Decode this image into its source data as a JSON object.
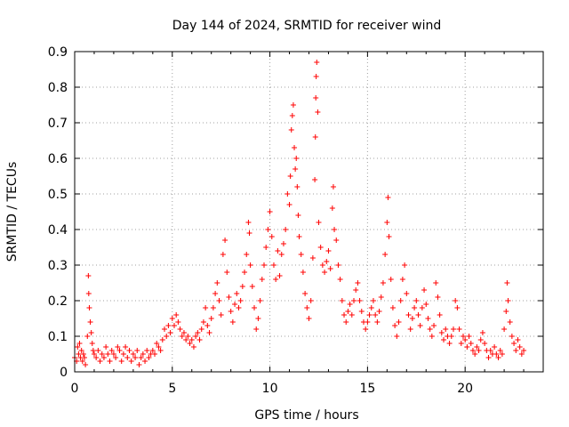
{
  "chart_data": {
    "type": "scatter",
    "title": "Day 144 of 2024, SRMTID for receiver wind",
    "xlabel": "GPS time / hours",
    "ylabel": "SRMTID / TECUs",
    "xlim": [
      0,
      24
    ],
    "ylim": [
      0,
      0.9
    ],
    "x_ticks": [
      0,
      5,
      10,
      15,
      20
    ],
    "x_tick_labels": [
      "0",
      "5",
      "10",
      "15",
      "20"
    ],
    "y_ticks": [
      0,
      0.1,
      0.2,
      0.3,
      0.4,
      0.5,
      0.6,
      0.7,
      0.8,
      0.9
    ],
    "y_tick_labels": [
      "0",
      "0.1",
      "0.2",
      "0.3",
      "0.4",
      "0.5",
      "0.6",
      "0.7",
      "0.8",
      "0.9"
    ],
    "grid": true,
    "marker": "+",
    "color": "#ff0000",
    "series": [
      {
        "name": "SRMTID",
        "points": [
          [
            0.0,
            0.04
          ],
          [
            0.1,
            0.03
          ],
          [
            0.15,
            0.07
          ],
          [
            0.2,
            0.05
          ],
          [
            0.25,
            0.08
          ],
          [
            0.3,
            0.04
          ],
          [
            0.35,
            0.06
          ],
          [
            0.4,
            0.03
          ],
          [
            0.45,
            0.05
          ],
          [
            0.5,
            0.04
          ],
          [
            0.55,
            0.02
          ],
          [
            0.65,
            0.1
          ],
          [
            0.7,
            0.27
          ],
          [
            0.72,
            0.22
          ],
          [
            0.75,
            0.18
          ],
          [
            0.8,
            0.14
          ],
          [
            0.85,
            0.11
          ],
          [
            0.9,
            0.08
          ],
          [
            0.95,
            0.06
          ],
          [
            1.0,
            0.05
          ],
          [
            1.1,
            0.04
          ],
          [
            1.2,
            0.06
          ],
          [
            1.3,
            0.03
          ],
          [
            1.4,
            0.05
          ],
          [
            1.5,
            0.04
          ],
          [
            1.6,
            0.07
          ],
          [
            1.7,
            0.05
          ],
          [
            1.8,
            0.03
          ],
          [
            1.9,
            0.06
          ],
          [
            2.0,
            0.05
          ],
          [
            2.1,
            0.04
          ],
          [
            2.2,
            0.07
          ],
          [
            2.3,
            0.06
          ],
          [
            2.4,
            0.03
          ],
          [
            2.5,
            0.05
          ],
          [
            2.6,
            0.07
          ],
          [
            2.7,
            0.04
          ],
          [
            2.8,
            0.06
          ],
          [
            2.9,
            0.03
          ],
          [
            3.0,
            0.05
          ],
          [
            3.1,
            0.04
          ],
          [
            3.2,
            0.06
          ],
          [
            3.3,
            0.02
          ],
          [
            3.4,
            0.04
          ],
          [
            3.5,
            0.05
          ],
          [
            3.6,
            0.03
          ],
          [
            3.7,
            0.06
          ],
          [
            3.8,
            0.04
          ],
          [
            3.9,
            0.05
          ],
          [
            4.0,
            0.06
          ],
          [
            4.1,
            0.05
          ],
          [
            4.2,
            0.08
          ],
          [
            4.3,
            0.07
          ],
          [
            4.4,
            0.06
          ],
          [
            4.5,
            0.09
          ],
          [
            4.6,
            0.12
          ],
          [
            4.7,
            0.1
          ],
          [
            4.8,
            0.13
          ],
          [
            4.9,
            0.11
          ],
          [
            5.0,
            0.15
          ],
          [
            5.1,
            0.13
          ],
          [
            5.2,
            0.16
          ],
          [
            5.3,
            0.14
          ],
          [
            5.4,
            0.12
          ],
          [
            5.5,
            0.1
          ],
          [
            5.6,
            0.11
          ],
          [
            5.7,
            0.09
          ],
          [
            5.8,
            0.1
          ],
          [
            5.9,
            0.08
          ],
          [
            6.0,
            0.09
          ],
          [
            6.1,
            0.07
          ],
          [
            6.2,
            0.1
          ],
          [
            6.3,
            0.11
          ],
          [
            6.4,
            0.09
          ],
          [
            6.5,
            0.12
          ],
          [
            6.6,
            0.14
          ],
          [
            6.7,
            0.18
          ],
          [
            6.8,
            0.13
          ],
          [
            6.9,
            0.11
          ],
          [
            7.0,
            0.15
          ],
          [
            7.1,
            0.18
          ],
          [
            7.2,
            0.22
          ],
          [
            7.3,
            0.25
          ],
          [
            7.4,
            0.2
          ],
          [
            7.5,
            0.16
          ],
          [
            7.6,
            0.33
          ],
          [
            7.7,
            0.37
          ],
          [
            7.8,
            0.28
          ],
          [
            7.9,
            0.21
          ],
          [
            8.0,
            0.17
          ],
          [
            8.1,
            0.14
          ],
          [
            8.2,
            0.19
          ],
          [
            8.3,
            0.22
          ],
          [
            8.4,
            0.18
          ],
          [
            8.5,
            0.2
          ],
          [
            8.6,
            0.24
          ],
          [
            8.7,
            0.28
          ],
          [
            8.8,
            0.33
          ],
          [
            8.9,
            0.42
          ],
          [
            8.95,
            0.39
          ],
          [
            9.0,
            0.3
          ],
          [
            9.1,
            0.24
          ],
          [
            9.2,
            0.18
          ],
          [
            9.3,
            0.12
          ],
          [
            9.4,
            0.15
          ],
          [
            9.5,
            0.2
          ],
          [
            9.6,
            0.26
          ],
          [
            9.7,
            0.3
          ],
          [
            9.8,
            0.35
          ],
          [
            9.9,
            0.4
          ],
          [
            10.0,
            0.45
          ],
          [
            10.1,
            0.38
          ],
          [
            10.2,
            0.3
          ],
          [
            10.3,
            0.26
          ],
          [
            10.4,
            0.34
          ],
          [
            10.5,
            0.27
          ],
          [
            10.6,
            0.33
          ],
          [
            10.7,
            0.36
          ],
          [
            10.8,
            0.4
          ],
          [
            10.9,
            0.5
          ],
          [
            11.0,
            0.47
          ],
          [
            11.05,
            0.55
          ],
          [
            11.1,
            0.68
          ],
          [
            11.15,
            0.72
          ],
          [
            11.2,
            0.75
          ],
          [
            11.25,
            0.63
          ],
          [
            11.3,
            0.57
          ],
          [
            11.35,
            0.6
          ],
          [
            11.4,
            0.52
          ],
          [
            11.45,
            0.44
          ],
          [
            11.5,
            0.38
          ],
          [
            11.6,
            0.33
          ],
          [
            11.7,
            0.28
          ],
          [
            11.8,
            0.22
          ],
          [
            11.9,
            0.18
          ],
          [
            12.0,
            0.15
          ],
          [
            12.1,
            0.2
          ],
          [
            12.2,
            0.32
          ],
          [
            12.3,
            0.54
          ],
          [
            12.33,
            0.66
          ],
          [
            12.35,
            0.77
          ],
          [
            12.37,
            0.83
          ],
          [
            12.4,
            0.87
          ],
          [
            12.45,
            0.73
          ],
          [
            12.5,
            0.42
          ],
          [
            12.6,
            0.35
          ],
          [
            12.7,
            0.3
          ],
          [
            12.8,
            0.28
          ],
          [
            12.9,
            0.31
          ],
          [
            13.0,
            0.34
          ],
          [
            13.1,
            0.29
          ],
          [
            13.2,
            0.46
          ],
          [
            13.25,
            0.52
          ],
          [
            13.3,
            0.4
          ],
          [
            13.4,
            0.37
          ],
          [
            13.5,
            0.3
          ],
          [
            13.6,
            0.26
          ],
          [
            13.7,
            0.2
          ],
          [
            13.8,
            0.16
          ],
          [
            13.9,
            0.14
          ],
          [
            14.0,
            0.17
          ],
          [
            14.1,
            0.19
          ],
          [
            14.2,
            0.16
          ],
          [
            14.3,
            0.2
          ],
          [
            14.4,
            0.23
          ],
          [
            14.5,
            0.25
          ],
          [
            14.6,
            0.2
          ],
          [
            14.7,
            0.17
          ],
          [
            14.8,
            0.14
          ],
          [
            14.9,
            0.12
          ],
          [
            15.0,
            0.14
          ],
          [
            15.1,
            0.16
          ],
          [
            15.2,
            0.18
          ],
          [
            15.3,
            0.2
          ],
          [
            15.4,
            0.16
          ],
          [
            15.5,
            0.14
          ],
          [
            15.6,
            0.17
          ],
          [
            15.7,
            0.21
          ],
          [
            15.8,
            0.25
          ],
          [
            15.9,
            0.33
          ],
          [
            16.0,
            0.42
          ],
          [
            16.05,
            0.49
          ],
          [
            16.1,
            0.38
          ],
          [
            16.2,
            0.26
          ],
          [
            16.3,
            0.18
          ],
          [
            16.4,
            0.13
          ],
          [
            16.5,
            0.1
          ],
          [
            16.6,
            0.14
          ],
          [
            16.7,
            0.2
          ],
          [
            16.8,
            0.26
          ],
          [
            16.9,
            0.3
          ],
          [
            17.0,
            0.22
          ],
          [
            17.1,
            0.16
          ],
          [
            17.2,
            0.12
          ],
          [
            17.3,
            0.15
          ],
          [
            17.4,
            0.18
          ],
          [
            17.5,
            0.2
          ],
          [
            17.6,
            0.16
          ],
          [
            17.7,
            0.13
          ],
          [
            17.8,
            0.18
          ],
          [
            17.9,
            0.23
          ],
          [
            18.0,
            0.19
          ],
          [
            18.1,
            0.15
          ],
          [
            18.2,
            0.12
          ],
          [
            18.3,
            0.1
          ],
          [
            18.4,
            0.13
          ],
          [
            18.5,
            0.25
          ],
          [
            18.6,
            0.21
          ],
          [
            18.7,
            0.16
          ],
          [
            18.8,
            0.11
          ],
          [
            18.9,
            0.09
          ],
          [
            19.0,
            0.12
          ],
          [
            19.1,
            0.1
          ],
          [
            19.2,
            0.08
          ],
          [
            19.3,
            0.1
          ],
          [
            19.4,
            0.12
          ],
          [
            19.5,
            0.2
          ],
          [
            19.6,
            0.18
          ],
          [
            19.7,
            0.12
          ],
          [
            19.8,
            0.08
          ],
          [
            19.9,
            0.1
          ],
          [
            20.0,
            0.09
          ],
          [
            20.1,
            0.07
          ],
          [
            20.2,
            0.1
          ],
          [
            20.3,
            0.08
          ],
          [
            20.4,
            0.06
          ],
          [
            20.5,
            0.05
          ],
          [
            20.6,
            0.07
          ],
          [
            20.7,
            0.06
          ],
          [
            20.8,
            0.09
          ],
          [
            20.9,
            0.11
          ],
          [
            21.0,
            0.08
          ],
          [
            21.1,
            0.06
          ],
          [
            21.2,
            0.04
          ],
          [
            21.3,
            0.06
          ],
          [
            21.4,
            0.05
          ],
          [
            21.5,
            0.07
          ],
          [
            21.6,
            0.05
          ],
          [
            21.7,
            0.04
          ],
          [
            21.8,
            0.06
          ],
          [
            21.9,
            0.05
          ],
          [
            22.0,
            0.12
          ],
          [
            22.1,
            0.17
          ],
          [
            22.15,
            0.25
          ],
          [
            22.2,
            0.2
          ],
          [
            22.3,
            0.14
          ],
          [
            22.4,
            0.1
          ],
          [
            22.5,
            0.08
          ],
          [
            22.6,
            0.06
          ],
          [
            22.7,
            0.09
          ],
          [
            22.8,
            0.07
          ],
          [
            22.9,
            0.05
          ],
          [
            23.0,
            0.06
          ]
        ]
      }
    ]
  }
}
